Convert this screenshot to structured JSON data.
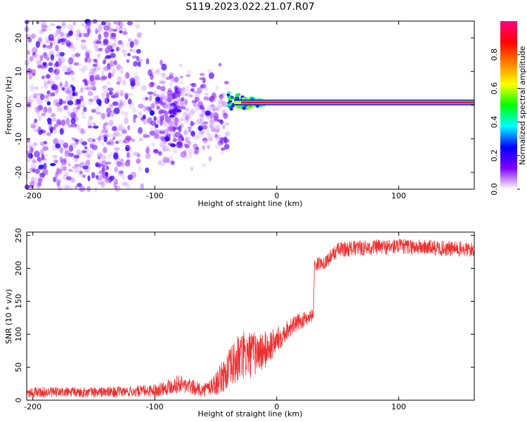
{
  "title": "S119.2023.022.21.07.R07",
  "chart_data": [
    {
      "type": "heatmap",
      "xlabel": "Height of straight line (km)",
      "ylabel": "Frequency (Hz)",
      "xlim": [
        -205,
        162
      ],
      "ylim": [
        -25,
        25
      ],
      "x_ticks": [
        -200,
        -100,
        0,
        100
      ],
      "y_ticks": [
        -20,
        -10,
        0,
        10,
        20
      ],
      "colorbar": {
        "label": "Normalized spectral amplitude",
        "range": [
          0,
          1
        ],
        "ticks": [
          "0.0",
          "0.2",
          "0.4",
          "0.6",
          "0.8"
        ],
        "colormap": [
          "#ffffff",
          "#7f00ff",
          "#0000ff",
          "#00ffff",
          "#00ff00",
          "#ffff00",
          "#ff8000",
          "#ff0000",
          "#ff0080"
        ]
      },
      "signal_line": {
        "frequency_hz": 0.8,
        "x_start": -35,
        "x_end": 162,
        "amplitude": 0.9
      },
      "noise_region": {
        "x_range": [
          -205,
          -40
        ],
        "frequency_range": [
          -25,
          25
        ],
        "amplitude_range": [
          0.0,
          0.35
        ]
      }
    },
    {
      "type": "line",
      "xlabel": "Height of straight line (km)",
      "ylabel": "SNR (10 * v/v)",
      "xlim": [
        -205,
        162
      ],
      "ylim": [
        0,
        255
      ],
      "x_ticks": [
        -200,
        -100,
        0,
        100
      ],
      "y_ticks": [
        0,
        50,
        100,
        150,
        200,
        250
      ],
      "series": [
        {
          "color": "#f03030",
          "x": [
            -205,
            -180,
            -150,
            -120,
            -100,
            -90,
            -80,
            -70,
            -60,
            -50,
            -40,
            -30,
            -20,
            -10,
            0,
            10,
            20,
            30,
            31,
            40,
            50,
            60,
            80,
            100,
            120,
            140,
            162
          ],
          "y": [
            12,
            12,
            12,
            13,
            15,
            20,
            25,
            20,
            15,
            25,
            45,
            65,
            70,
            75,
            90,
            110,
            120,
            130,
            205,
            210,
            228,
            230,
            232,
            233,
            232,
            230,
            228
          ],
          "noise_amplitude": [
            8,
            8,
            8,
            8,
            10,
            12,
            14,
            12,
            10,
            18,
            30,
            40,
            35,
            30,
            20,
            15,
            12,
            10,
            10,
            10,
            12,
            12,
            12,
            12,
            12,
            12,
            12
          ]
        }
      ]
    }
  ]
}
